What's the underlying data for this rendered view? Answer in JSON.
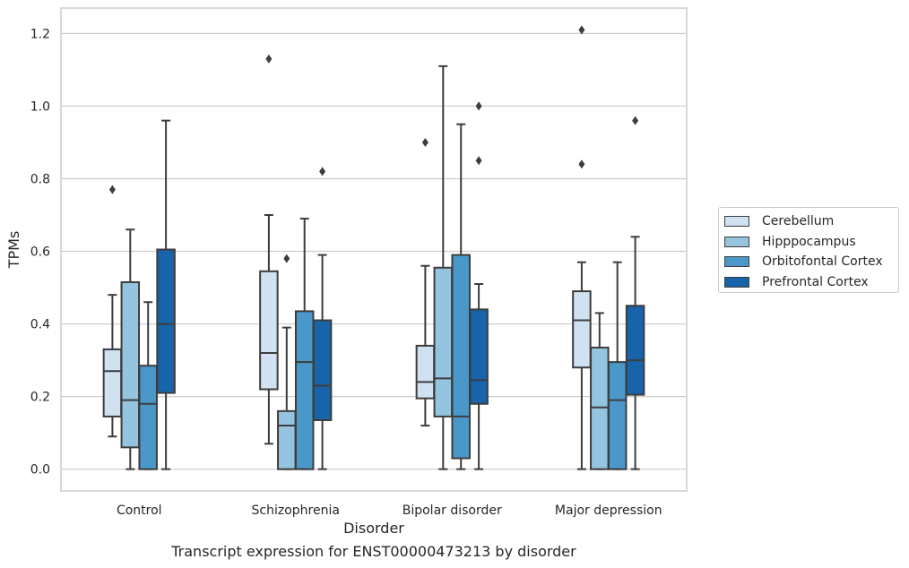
{
  "chart_data": {
    "type": "box",
    "caption": "Transcript expression for ENST00000473213 by disorder",
    "xlabel": "Disorder",
    "ylabel": "TPMs",
    "ylim": [
      -0.06,
      1.27
    ],
    "yticks": [
      0.0,
      0.2,
      0.4,
      0.6,
      0.8,
      1.0,
      1.2
    ],
    "ytick_labels": [
      "0.0",
      "0.2",
      "0.4",
      "0.6",
      "0.8",
      "1.0",
      "1.2"
    ],
    "grid": "horizontal",
    "legend_position": "right",
    "categories": [
      "Control",
      "Schizophrenia",
      "Bipolar disorder",
      "Major depression"
    ],
    "series": [
      {
        "name": "Cerebellum",
        "color": "#d0e1f2",
        "boxes": [
          {
            "whislo": 0.09,
            "q1": 0.145,
            "med": 0.27,
            "q3": 0.33,
            "whishi": 0.48,
            "fliers": [
              0.77
            ]
          },
          {
            "whislo": 0.07,
            "q1": 0.22,
            "med": 0.32,
            "q3": 0.545,
            "whishi": 0.7,
            "fliers": [
              1.13
            ]
          },
          {
            "whislo": 0.12,
            "q1": 0.195,
            "med": 0.24,
            "q3": 0.34,
            "whishi": 0.56,
            "fliers": [
              0.9
            ]
          },
          {
            "whislo": 0.0,
            "q1": 0.28,
            "med": 0.41,
            "q3": 0.49,
            "whishi": 0.57,
            "fliers": [
              0.84,
              1.21
            ]
          }
        ]
      },
      {
        "name": "Hipppocampus",
        "color": "#94c4df",
        "boxes": [
          {
            "whislo": 0.0,
            "q1": 0.06,
            "med": 0.19,
            "q3": 0.515,
            "whishi": 0.66,
            "fliers": []
          },
          {
            "whislo": 0.0,
            "q1": 0.0,
            "med": 0.12,
            "q3": 0.16,
            "whishi": 0.39,
            "fliers": [
              0.58
            ]
          },
          {
            "whislo": 0.0,
            "q1": 0.145,
            "med": 0.25,
            "q3": 0.555,
            "whishi": 1.11,
            "fliers": []
          },
          {
            "whislo": 0.0,
            "q1": 0.0,
            "med": 0.17,
            "q3": 0.335,
            "whishi": 0.43,
            "fliers": []
          }
        ]
      },
      {
        "name": "Orbitofontal Cortex",
        "color": "#4a98c9",
        "boxes": [
          {
            "whislo": 0.0,
            "q1": 0.0,
            "med": 0.18,
            "q3": 0.285,
            "whishi": 0.46,
            "fliers": []
          },
          {
            "whislo": 0.0,
            "q1": 0.0,
            "med": 0.295,
            "q3": 0.435,
            "whishi": 0.69,
            "fliers": []
          },
          {
            "whislo": 0.0,
            "q1": 0.03,
            "med": 0.145,
            "q3": 0.59,
            "whishi": 0.95,
            "fliers": []
          },
          {
            "whislo": 0.0,
            "q1": 0.0,
            "med": 0.19,
            "q3": 0.295,
            "whishi": 0.57,
            "fliers": []
          }
        ]
      },
      {
        "name": "Prefrontal Cortex",
        "color": "#1764ab",
        "boxes": [
          {
            "whislo": 0.0,
            "q1": 0.21,
            "med": 0.4,
            "q3": 0.605,
            "whishi": 0.96,
            "fliers": []
          },
          {
            "whislo": 0.0,
            "q1": 0.135,
            "med": 0.23,
            "q3": 0.41,
            "whishi": 0.59,
            "fliers": [
              0.82
            ]
          },
          {
            "whislo": 0.0,
            "q1": 0.18,
            "med": 0.245,
            "q3": 0.44,
            "whishi": 0.51,
            "fliers": [
              0.85,
              1.0
            ]
          },
          {
            "whislo": 0.0,
            "q1": 0.205,
            "med": 0.3,
            "q3": 0.45,
            "whishi": 0.64,
            "fliers": [
              0.96
            ]
          }
        ]
      }
    ]
  }
}
